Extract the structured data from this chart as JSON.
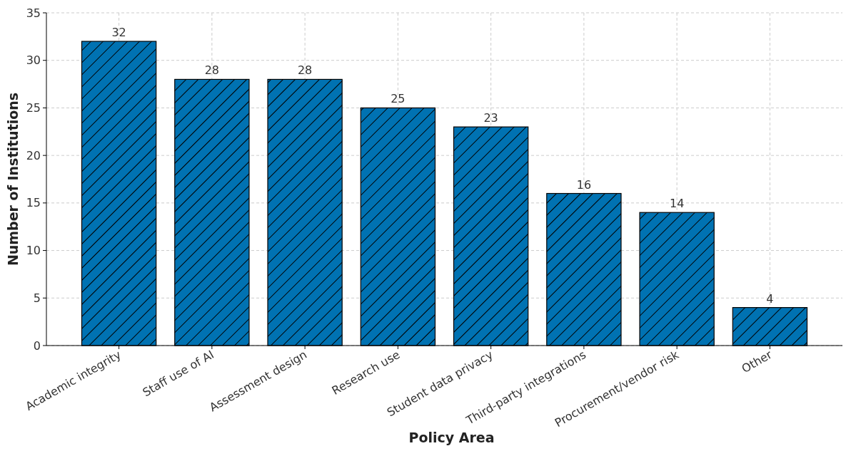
{
  "chart_data": {
    "type": "bar",
    "xlabel": "Policy Area",
    "ylabel": "Number of Institutions",
    "categories": [
      "Academic integrity",
      "Staff use of AI",
      "Assessment design",
      "Research use",
      "Student data privacy",
      "Third-party integrations",
      "Procurement/vendor risk",
      "Other"
    ],
    "values": [
      32,
      28,
      28,
      25,
      23,
      16,
      14,
      4
    ],
    "color": "#0072b2",
    "ylim": [
      0,
      35
    ],
    "yticks": [
      0,
      5,
      10,
      15,
      20,
      25,
      30,
      35
    ],
    "grid": true,
    "data_labels": true
  }
}
